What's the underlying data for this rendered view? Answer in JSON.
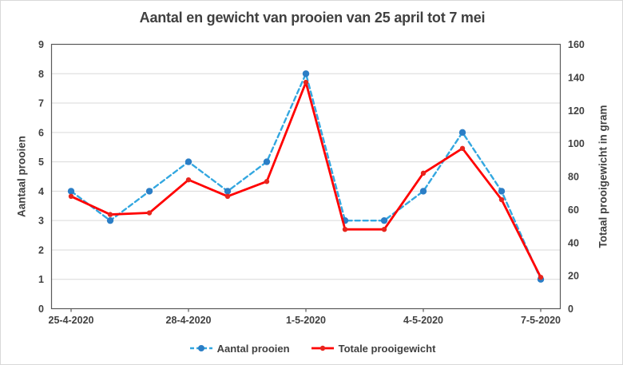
{
  "chart_data": {
    "type": "line",
    "title": "Aantal en gewicht van prooien van 25 april tot 7 mei",
    "categories": [
      "25-4-2020",
      "26-4-2020",
      "27-4-2020",
      "28-4-2020",
      "29-4-2020",
      "30-4-2020",
      "1-5-2020",
      "2-5-2020",
      "3-5-2020",
      "4-5-2020",
      "5-5-2020",
      "6-5-2020",
      "7-5-2020"
    ],
    "x_tick_labels": [
      "25-4-2020",
      "28-4-2020",
      "1-5-2020",
      "4-5-2020",
      "7-5-2020"
    ],
    "x_tick_every": 3,
    "series": [
      {
        "name": "Aantal prooien",
        "axis": "left",
        "style": "dashed",
        "line_color": "#33A7E0",
        "marker_color": "#2B7EC6",
        "values": [
          4,
          3,
          4,
          5,
          4,
          5,
          8,
          3,
          3,
          4,
          6,
          4,
          1
        ]
      },
      {
        "name": "Totale prooigewicht",
        "axis": "right",
        "style": "solid",
        "line_color": "#FF0000",
        "marker_color": "#E8251D",
        "values": [
          68,
          57,
          58,
          78,
          68,
          77,
          137,
          48,
          48,
          82,
          97,
          66,
          19
        ]
      }
    ],
    "left_axis": {
      "label": "Aantaal prooien",
      "min": 0,
      "max": 9,
      "step": 1
    },
    "right_axis": {
      "label": "Totaal prooigewicht in gram",
      "min": 0,
      "max": 160,
      "step": 20
    },
    "grid": true,
    "legend_position": "bottom"
  },
  "colors": {
    "text": "#404040",
    "gridline": "#D9D9D9",
    "axis_line": "#595959",
    "background": "#FFFFFF"
  }
}
